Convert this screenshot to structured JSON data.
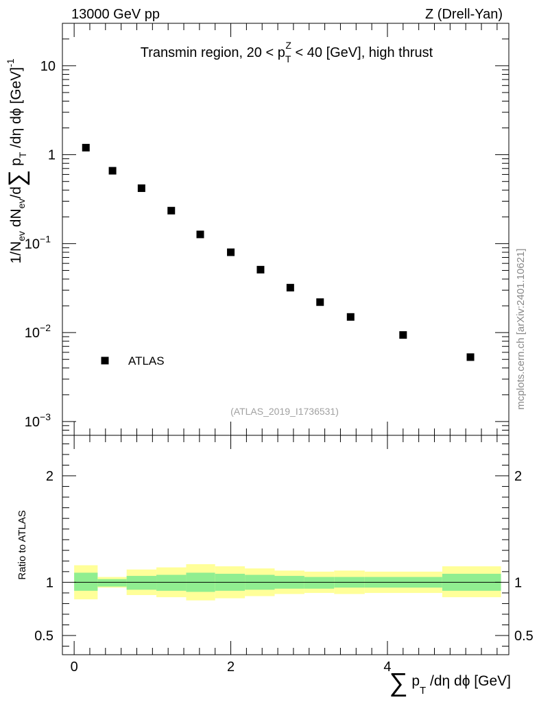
{
  "header": {
    "left": "13000 GeV pp",
    "right": "Z (Drell-Yan)"
  },
  "side_label": "mcplots.cern.ch [arXiv:2401.10621]",
  "chart_data": [
    {
      "panel": "main",
      "type": "scatter",
      "title": "Transmin region, 20 < p_T^Z < 40 [GeV], high thrust",
      "ylabel": "1/N_ev dN_ev/d∑p_T/dη dφ [GeV]^-1",
      "yscale": "log",
      "ylim": [
        0.0007,
        30
      ],
      "xlim": [
        -0.15,
        5.55
      ],
      "yticks": [
        "10^-3",
        "10^-2",
        "10^-1",
        "1",
        "10"
      ],
      "legend": {
        "placement": "bottom-left",
        "entries": [
          "ATLAS"
        ]
      },
      "watermark": "(ATLAS_2019_I1736531)",
      "series": [
        {
          "name": "ATLAS",
          "marker": "square",
          "x": [
            0.15,
            0.49,
            0.86,
            1.24,
            1.61,
            2.0,
            2.38,
            2.76,
            3.14,
            3.53,
            4.2,
            5.06
          ],
          "y": [
            1.2,
            0.66,
            0.42,
            0.235,
            0.127,
            0.08,
            0.051,
            0.032,
            0.022,
            0.015,
            0.0094,
            0.0053
          ]
        }
      ]
    },
    {
      "panel": "ratio",
      "type": "area",
      "ylabel": "Ratio to ATLAS",
      "xlabel": "∑p_T/dη dφ [GeV]",
      "ylim": [
        0.32,
        2.38
      ],
      "xlim": [
        -0.15,
        5.55
      ],
      "xticks": [
        "0",
        "2",
        "4"
      ],
      "yticks": [
        "0.5",
        "1",
        "2"
      ],
      "reference_line": 1,
      "bins": [
        {
          "x0": 0.0,
          "x1": 0.3,
          "inner": [
            0.92,
            1.09
          ],
          "outer": [
            0.84,
            1.16
          ]
        },
        {
          "x0": 0.3,
          "x1": 0.67,
          "inner": [
            0.96,
            1.03
          ],
          "outer": [
            0.95,
            1.05
          ]
        },
        {
          "x0": 0.67,
          "x1": 1.05,
          "inner": [
            0.93,
            1.06
          ],
          "outer": [
            0.88,
            1.12
          ]
        },
        {
          "x0": 1.05,
          "x1": 1.43,
          "inner": [
            0.92,
            1.07
          ],
          "outer": [
            0.86,
            1.14
          ]
        },
        {
          "x0": 1.43,
          "x1": 1.8,
          "inner": [
            0.91,
            1.09
          ],
          "outer": [
            0.83,
            1.17
          ]
        },
        {
          "x0": 1.8,
          "x1": 2.18,
          "inner": [
            0.92,
            1.08
          ],
          "outer": [
            0.85,
            1.15
          ]
        },
        {
          "x0": 2.18,
          "x1": 2.56,
          "inner": [
            0.93,
            1.07
          ],
          "outer": [
            0.87,
            1.13
          ]
        },
        {
          "x0": 2.56,
          "x1": 2.94,
          "inner": [
            0.94,
            1.06
          ],
          "outer": [
            0.89,
            1.11
          ]
        },
        {
          "x0": 2.94,
          "x1": 3.32,
          "inner": [
            0.94,
            1.05
          ],
          "outer": [
            0.9,
            1.1
          ]
        },
        {
          "x0": 3.32,
          "x1": 3.71,
          "inner": [
            0.95,
            1.05
          ],
          "outer": [
            0.89,
            1.11
          ]
        },
        {
          "x0": 3.71,
          "x1": 4.7,
          "inner": [
            0.95,
            1.05
          ],
          "outer": [
            0.9,
            1.1
          ]
        },
        {
          "x0": 4.7,
          "x1": 5.45,
          "inner": [
            0.92,
            1.08
          ],
          "outer": [
            0.86,
            1.15
          ]
        }
      ],
      "colors": {
        "inner": "#90ee90",
        "outer": "#ffff99",
        "line": "#000000"
      }
    }
  ]
}
